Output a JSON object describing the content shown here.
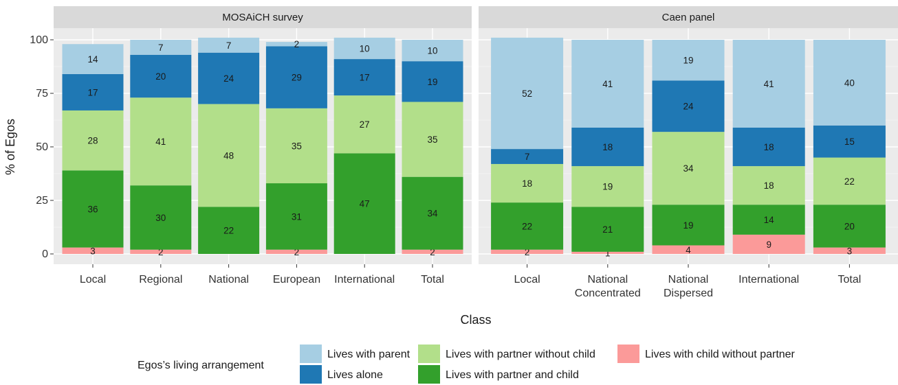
{
  "chart_data": {
    "type": "bar",
    "stacked": true,
    "xlabel": "Class",
    "ylabel": "% of Egos",
    "ylim": [
      0,
      100
    ],
    "yticks": [
      0,
      25,
      50,
      75,
      100
    ],
    "grid": true,
    "legend": {
      "title": "Egos’s living arrangement",
      "position": "bottom",
      "entries": [
        {
          "name": "Lives with parent",
          "color": "#a6cee3"
        },
        {
          "name": "Lives alone",
          "color": "#1f78b4"
        },
        {
          "name": "Lives with partner without child",
          "color": "#b2df8a"
        },
        {
          "name": "Lives with partner and child",
          "color": "#33a02c"
        },
        {
          "name": "Lives with child without partner",
          "color": "#fb9a99"
        }
      ]
    },
    "stack_order_bottom_to_top": [
      "Lives with child without partner",
      "Lives with partner and child",
      "Lives with partner without child",
      "Lives alone",
      "Lives with parent"
    ],
    "panels": [
      {
        "title": "MOSAiCH survey",
        "categories": [
          "Local",
          "Regional",
          "National",
          "European",
          "International",
          "Total"
        ],
        "series": [
          {
            "name": "Lives with child without partner",
            "values": [
              3,
              2,
              0,
              2,
              0,
              2
            ],
            "labels": [
              "3",
              "2",
              "",
              "2",
              "",
              "2"
            ]
          },
          {
            "name": "Lives with partner and child",
            "values": [
              36,
              30,
              22,
              31,
              47,
              34
            ],
            "labels": [
              "36",
              "30",
              "22",
              "31",
              "47",
              "34"
            ]
          },
          {
            "name": "Lives with partner without child",
            "values": [
              28,
              41,
              48,
              35,
              27,
              35
            ],
            "labels": [
              "28",
              "41",
              "48",
              "35",
              "27",
              "35"
            ]
          },
          {
            "name": "Lives alone",
            "values": [
              17,
              20,
              24,
              29,
              17,
              19
            ],
            "labels": [
              "17",
              "20",
              "24",
              "29",
              "17",
              "19"
            ]
          },
          {
            "name": "Lives with parent",
            "values": [
              14,
              7,
              7,
              2,
              10,
              10
            ],
            "labels": [
              "14",
              "7",
              "7",
              "2",
              "10",
              "10"
            ]
          }
        ]
      },
      {
        "title": "Caen panel",
        "categories": [
          "Local",
          "National\nConcentrated",
          "National\nDispersed",
          "International",
          "Total"
        ],
        "series": [
          {
            "name": "Lives with child without partner",
            "values": [
              2,
              1,
              4,
              9,
              3
            ],
            "labels": [
              "2",
              "1",
              "4",
              "9",
              "3"
            ]
          },
          {
            "name": "Lives with partner and child",
            "values": [
              22,
              21,
              19,
              14,
              20
            ],
            "labels": [
              "22",
              "21",
              "19",
              "14",
              "20"
            ]
          },
          {
            "name": "Lives with partner without child",
            "values": [
              18,
              19,
              34,
              18,
              22
            ],
            "labels": [
              "18",
              "19",
              "34",
              "18",
              "22"
            ]
          },
          {
            "name": "Lives alone",
            "values": [
              7,
              18,
              24,
              18,
              15
            ],
            "labels": [
              "7",
              "18",
              "24",
              "18",
              "15"
            ]
          },
          {
            "name": "Lives with parent",
            "values": [
              52,
              41,
              19,
              41,
              40
            ],
            "labels": [
              "52",
              "41",
              "19",
              "41",
              "40"
            ]
          }
        ]
      }
    ]
  }
}
